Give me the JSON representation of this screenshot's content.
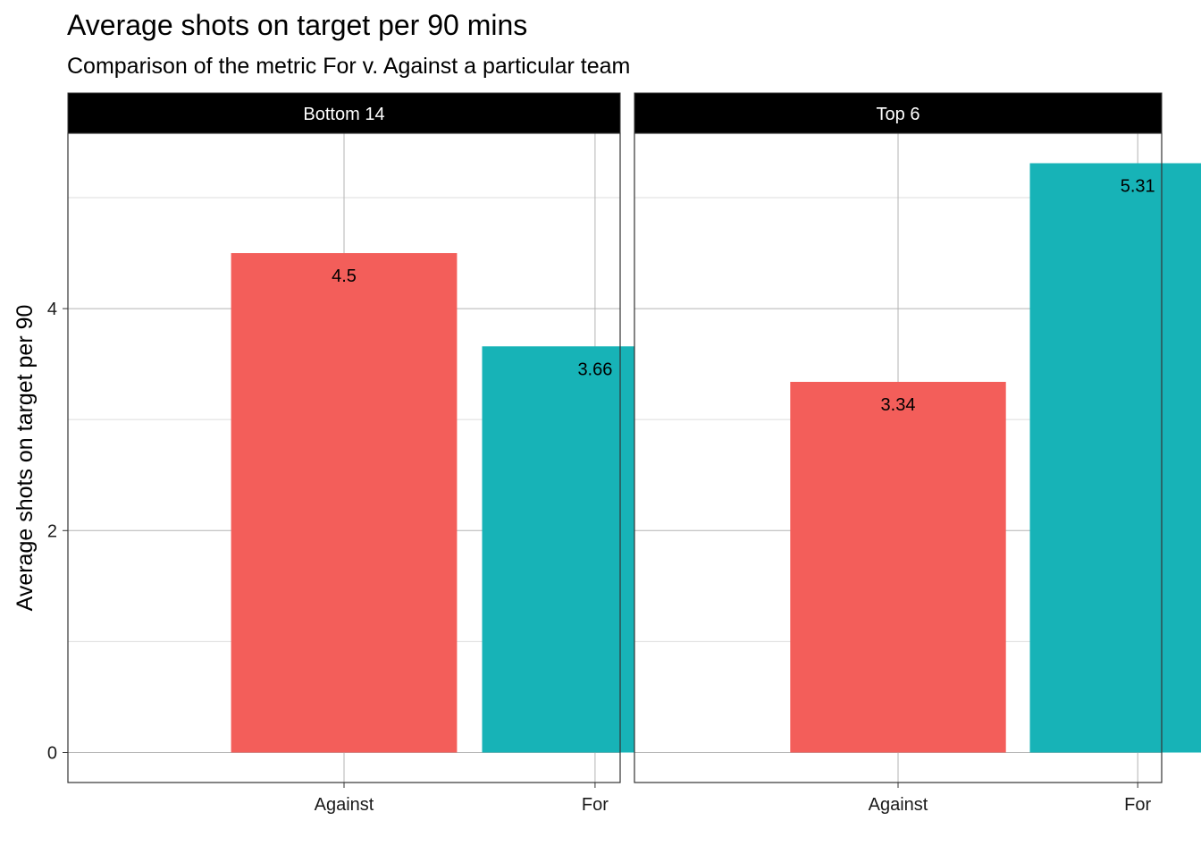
{
  "chart_data": {
    "type": "bar",
    "title": "Average shots on target per 90 mins",
    "subtitle": "Comparison of the metric For v. Against a particular team",
    "xlabel": "",
    "ylabel": "Average shots on target per 90",
    "ylim": [
      -0.27,
      5.58
    ],
    "yticks": [
      0,
      2,
      4
    ],
    "grid": true,
    "categories": [
      "Against",
      "For"
    ],
    "colors": {
      "Against": "#F35E5A",
      "For": "#17B3B7"
    },
    "facets": [
      {
        "label": "Bottom 14",
        "values": [
          4.5,
          3.66
        ],
        "value_labels": [
          "4.5",
          "3.66"
        ]
      },
      {
        "label": "Top 6",
        "values": [
          3.34,
          5.31
        ],
        "value_labels": [
          "3.34",
          "5.31"
        ]
      }
    ]
  }
}
